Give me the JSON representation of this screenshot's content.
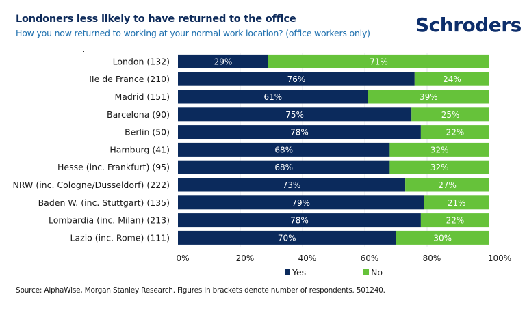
{
  "header": {
    "title": "Londoners less likely to have returned to the office",
    "subtitle": "How you now returned to working at your normal work location? (office workers only)",
    "logo_text": "Schroders"
  },
  "footer": {
    "source": "Source: AlphaWise, Morgan Stanley Research. Figures in brackets denote number of respondents. 501240."
  },
  "colors": {
    "yes": "#0b2a5c",
    "no": "#66c23a",
    "grid": "#e3e6ea"
  },
  "chart_data": {
    "type": "bar",
    "orientation": "horizontal",
    "stacked": true,
    "title": "Londoners less likely to have returned to the office",
    "subtitle": "How you now returned to working at your normal work location? (office workers only)",
    "xlabel": "",
    "ylabel": "",
    "xlim": [
      0,
      100
    ],
    "x_ticks": [
      "0%",
      "20%",
      "40%",
      "60%",
      "80%",
      "100%"
    ],
    "grid": true,
    "legend_position": "bottom",
    "categories": [
      "London (132)",
      "IIe de France (210)",
      "Madrid (151)",
      "Barcelona (90)",
      "Berlin (50)",
      "Hamburg (41)",
      "Hesse (inc. Frankfurt) (95)",
      "NRW (inc. Cologne/Dusseldorf) (222)",
      "Baden W. (inc. Stuttgart) (135)",
      "Lombardia (inc. Milan) (213)",
      "Lazio (inc. Rome) (111)"
    ],
    "series": [
      {
        "name": "Yes",
        "values": [
          29,
          76,
          61,
          75,
          78,
          68,
          68,
          73,
          79,
          78,
          70
        ]
      },
      {
        "name": "No",
        "values": [
          71,
          24,
          39,
          25,
          22,
          32,
          32,
          27,
          21,
          22,
          30
        ]
      }
    ],
    "value_suffix": "%"
  }
}
